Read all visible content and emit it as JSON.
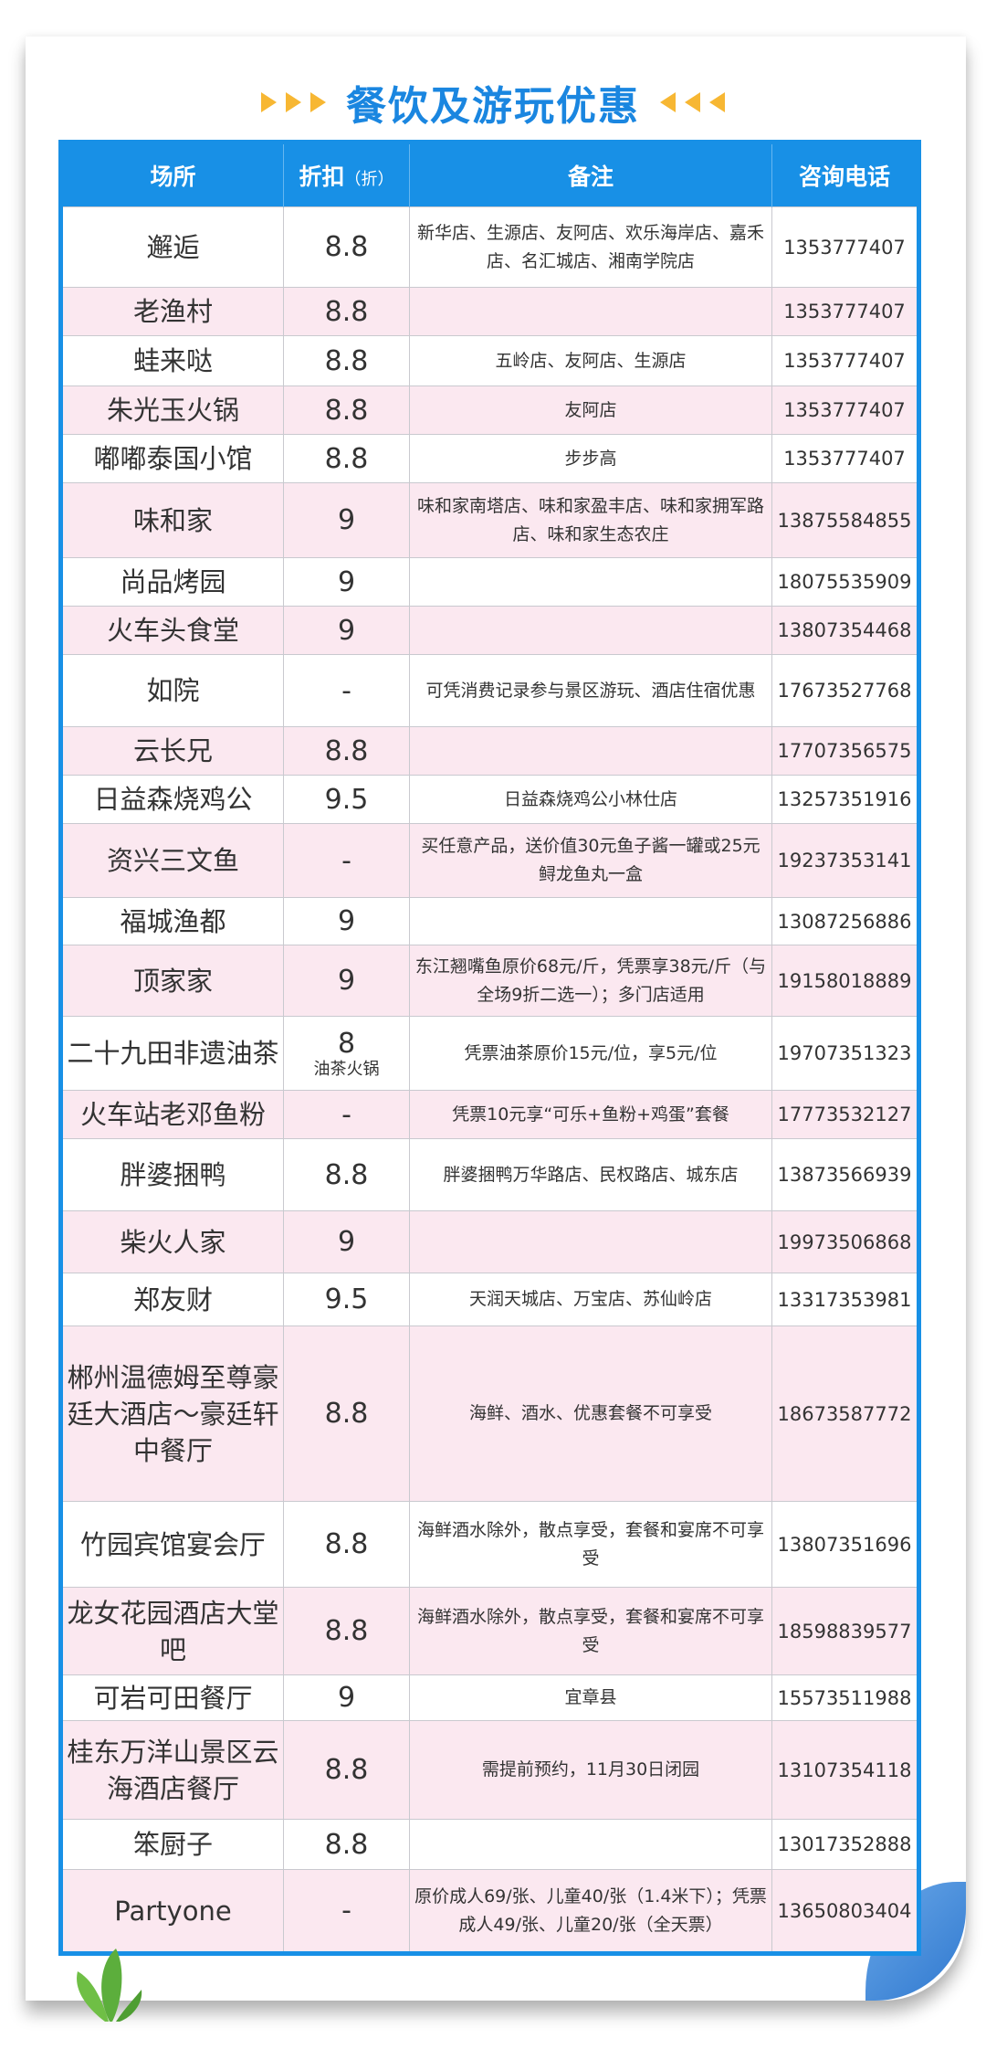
{
  "title": "餐饮及游玩优惠",
  "colors": {
    "accent": "#1890e6",
    "title": "#1a86e0",
    "row_alt": "#fbe8f0",
    "arrow": "#f7b733"
  },
  "header": {
    "place": "场所",
    "discount": "折扣",
    "discount_unit": "（折）",
    "note": "备注",
    "phone": "咨询电话"
  },
  "rows": [
    {
      "name": "邂逅",
      "discount": "8.8",
      "note": "新华店、生源店、友阿店、欢乐海岸店、嘉禾店、名汇城店、湘南学院店",
      "phone": "1353777407"
    },
    {
      "name": "老渔村",
      "discount": "8.8",
      "note": "",
      "phone": "1353777407"
    },
    {
      "name": "蛙来哒",
      "discount": "8.8",
      "note": "五岭店、友阿店、生源店",
      "phone": "1353777407"
    },
    {
      "name": "朱光玉火锅",
      "discount": "8.8",
      "note": "友阿店",
      "phone": "1353777407"
    },
    {
      "name": "嘟嘟泰国小馆",
      "discount": "8.8",
      "note": "步步高",
      "phone": "1353777407"
    },
    {
      "name": "味和家",
      "discount": "9",
      "note": "味和家南塔店、味和家盈丰店、味和家拥军路店、味和家生态农庄",
      "phone": "13875584855"
    },
    {
      "name": "尚品烤园",
      "discount": "9",
      "note": "",
      "phone": "18075535909"
    },
    {
      "name": "火车头食堂",
      "discount": "9",
      "note": "",
      "phone": "13807354468"
    },
    {
      "name": "如院",
      "discount": "-",
      "note": "可凭消费记录参与景区游玩、酒店住宿优惠",
      "phone": "17673527768"
    },
    {
      "name": "云长兄",
      "discount": "8.8",
      "note": "",
      "phone": "17707356575"
    },
    {
      "name": "日益森烧鸡公",
      "discount": "9.5",
      "note": "日益森烧鸡公小林仕店",
      "phone": "13257351916"
    },
    {
      "name": "资兴三文鱼",
      "discount": "-",
      "note": "买任意产品，送价值30元鱼子酱一罐或25元鲟龙鱼丸一盒",
      "phone": "19237353141"
    },
    {
      "name": "福城渔都",
      "discount": "9",
      "note": "",
      "phone": "13087256886"
    },
    {
      "name": "顶家家",
      "discount": "9",
      "note": "东江翘嘴鱼原价68元/斤，凭票享38元/斤（与全场9折二选一）；多门店适用",
      "phone": "19158018889"
    },
    {
      "name": "二十九田非遗油茶",
      "discount": "8",
      "discount_sub": "油茶火锅",
      "note": "凭票油茶原价15元/位，享5元/位",
      "phone": "19707351323"
    },
    {
      "name": "火车站老邓鱼粉",
      "discount": "-",
      "note": "凭票10元享“可乐+鱼粉+鸡蛋”套餐",
      "phone": "17773532127"
    },
    {
      "name": "胖婆捆鸭",
      "discount": "8.8",
      "note": "胖婆捆鸭万华路店、民权路店、城东店",
      "phone": "13873566939"
    },
    {
      "name": "柴火人家",
      "discount": "9",
      "note": "",
      "phone": "19973506868"
    },
    {
      "name": "郑友财",
      "discount": "9.5",
      "note": "天润天城店、万宝店、苏仙岭店",
      "phone": "13317353981"
    },
    {
      "name": "郴州温德姆至尊豪廷大酒店～豪廷轩中餐厅",
      "discount": "8.8",
      "note": "海鲜、酒水、优惠套餐不可享受",
      "phone": "18673587772"
    },
    {
      "name": "竹园宾馆宴会厅",
      "discount": "8.8",
      "note": "海鲜酒水除外，散点享受，套餐和宴席不可享受",
      "phone": "13807351696"
    },
    {
      "name": "龙女花园酒店大堂吧",
      "discount": "8.8",
      "note": "海鲜酒水除外，散点享受，套餐和宴席不可享受",
      "phone": "18598839577"
    },
    {
      "name": "可岩可田餐厅",
      "discount": "9",
      "note": "宜章县",
      "phone": "15573511988"
    },
    {
      "name": "桂东万洋山景区云海酒店餐厅",
      "discount": "8.8",
      "note": "需提前预约，11月30日闭园",
      "phone": "13107354118"
    },
    {
      "name": "笨厨子",
      "discount": "8.8",
      "note": "",
      "phone": "13017352888"
    },
    {
      "name": "Partyone",
      "discount": "-",
      "note": "原价成人69/张、儿童40/张（1.4米下）；凭票成人49/张、儿童20/张（全天票）",
      "phone": "13650803404"
    }
  ]
}
